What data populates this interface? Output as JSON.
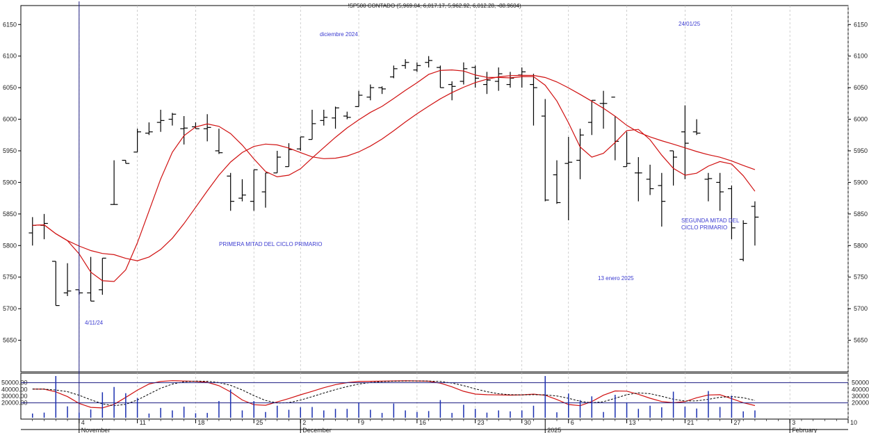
{
  "chart_data": {
    "type": "line",
    "title": "!SP500 CONTADO (5,969.04, 6,017.17, 5,962.92, 6,012.28, -88.9604)",
    "ylim": [
      5600,
      6180
    ],
    "yticks": [
      5650,
      5700,
      5750,
      5800,
      5850,
      5900,
      5950,
      6000,
      6050,
      6100,
      6150
    ],
    "xlim": [
      -1,
      70
    ],
    "grid": true,
    "x_day_ticks": [
      {
        "x": 4,
        "label": "4"
      },
      {
        "x": 9,
        "label": "11"
      },
      {
        "x": 14,
        "label": "18"
      },
      {
        "x": 19,
        "label": "25"
      },
      {
        "x": 23,
        "label": "2"
      },
      {
        "x": 28,
        "label": "9"
      },
      {
        "x": 33,
        "label": "16"
      },
      {
        "x": 38,
        "label": "23"
      },
      {
        "x": 42,
        "label": "30"
      },
      {
        "x": 46,
        "label": "6"
      },
      {
        "x": 51,
        "label": "13"
      },
      {
        "x": 56,
        "label": "21"
      },
      {
        "x": 60,
        "label": "27"
      },
      {
        "x": 65,
        "label": "3"
      },
      {
        "x": 70,
        "label": "10"
      }
    ],
    "x_month_labels": [
      {
        "x": 4,
        "label": "November"
      },
      {
        "x": 23,
        "label": "December"
      },
      {
        "x": 44,
        "label": "2025"
      },
      {
        "x": 65,
        "label": "February"
      }
    ],
    "bars": [
      [
        5800,
        5845,
        5820,
        5832
      ],
      [
        5810,
        5850,
        5832,
        5835
      ],
      [
        5705,
        5775,
        5775,
        5705
      ],
      [
        5720,
        5772,
        5725,
        5728
      ],
      [
        5722,
        5730,
        5730,
        5725
      ],
      [
        5712,
        5782,
        5725,
        5712
      ],
      [
        5722,
        5780,
        5730,
        5780
      ],
      [
        5865,
        5935,
        5865,
        5865
      ],
      [
        5930,
        5935,
        5935,
        5930
      ],
      [
        5948,
        5985,
        5948,
        5980
      ],
      [
        5975,
        5995,
        5978,
        5980
      ],
      [
        5980,
        6015,
        5995,
        5998
      ],
      [
        5990,
        6010,
        6000,
        6008
      ],
      [
        5960,
        6005,
        5985,
        5986
      ],
      [
        5985,
        5995,
        5988,
        5985
      ],
      [
        5965,
        6008,
        5985,
        5987
      ],
      [
        5945,
        5985,
        5950,
        5947
      ],
      [
        5855,
        5915,
        5910,
        5870
      ],
      [
        5870,
        5905,
        5875,
        5880
      ],
      [
        5855,
        5920,
        5870,
        5920
      ],
      [
        5860,
        5915,
        5885,
        5915
      ],
      [
        5915,
        5950,
        5915,
        5940
      ],
      [
        5925,
        5962,
        5925,
        5952
      ],
      [
        5950,
        5972,
        5953,
        5972
      ],
      [
        5968,
        6015,
        5968,
        5993
      ],
      [
        5990,
        6015,
        5998,
        6003
      ],
      [
        5985,
        6020,
        6002,
        6018
      ],
      [
        6000,
        6012,
        6005,
        6003
      ],
      [
        6020,
        6045,
        6020,
        6038
      ],
      [
        6030,
        6055,
        6035,
        6050
      ],
      [
        6040,
        6052,
        6050,
        6048
      ],
      [
        6065,
        6085,
        6067,
        6080
      ],
      [
        6080,
        6095,
        6085,
        6090
      ],
      [
        6075,
        6090,
        6078,
        6085
      ],
      [
        6082,
        6100,
        6090,
        6093
      ],
      [
        6050,
        6085,
        6082,
        6050
      ],
      [
        6030,
        6060,
        6055,
        6052
      ],
      [
        6055,
        6090,
        6060,
        6080
      ],
      [
        6050,
        6085,
        6082,
        6065
      ],
      [
        6040,
        6075,
        6055,
        6062
      ],
      [
        6045,
        6082,
        6060,
        6072
      ],
      [
        6050,
        6075,
        6055,
        6065
      ],
      [
        6050,
        6082,
        6070,
        6075
      ],
      [
        5990,
        6072,
        6055,
        6050
      ],
      [
        5870,
        6032,
        6005,
        5872
      ],
      [
        5866,
        5935,
        5912,
        5868
      ],
      [
        5840,
        5972,
        5930,
        5932
      ],
      [
        5905,
        5985,
        5935,
        5975
      ],
      [
        5975,
        6030,
        5995,
        6030
      ],
      [
        5985,
        6045,
        6025,
        6025
      ],
      [
        5935,
        6005,
        6035,
        5965
      ],
      [
        5925,
        5980,
        5925,
        5930
      ],
      [
        5870,
        5940,
        5915,
        5915
      ],
      [
        5880,
        5928,
        5905,
        5890
      ],
      [
        5830,
        5915,
        5895,
        5870
      ],
      [
        5895,
        5950,
        5950,
        5940
      ],
      [
        5905,
        6022,
        5980,
        5962
      ],
      [
        5975,
        6000,
        5980,
        5978
      ],
      [
        5870,
        5915,
        5905,
        5906
      ],
      [
        5855,
        5915,
        5900,
        5885
      ],
      [
        5810,
        5895,
        5890,
        5828
      ],
      [
        5775,
        5840,
        5778,
        5835
      ],
      [
        5800,
        5870,
        5862,
        5845
      ]
    ],
    "indicator_ylim": [
      0,
      60000
    ],
    "indicator_ticks": [
      20000,
      30000,
      40000,
      50000
    ],
    "annotations": [
      {
        "text": "diciembre 2024"
      },
      {
        "text": "24/01/25"
      },
      {
        "text": "4/11/24"
      },
      {
        "text": "PRIMERA MITAD DEL CICLO PRIMARIO"
      },
      {
        "text": "SEGUNDA MITAD DEL"
      },
      {
        "text": "CICLO PRIMARIO"
      },
      {
        "text": "13 enero 2025"
      }
    ]
  }
}
